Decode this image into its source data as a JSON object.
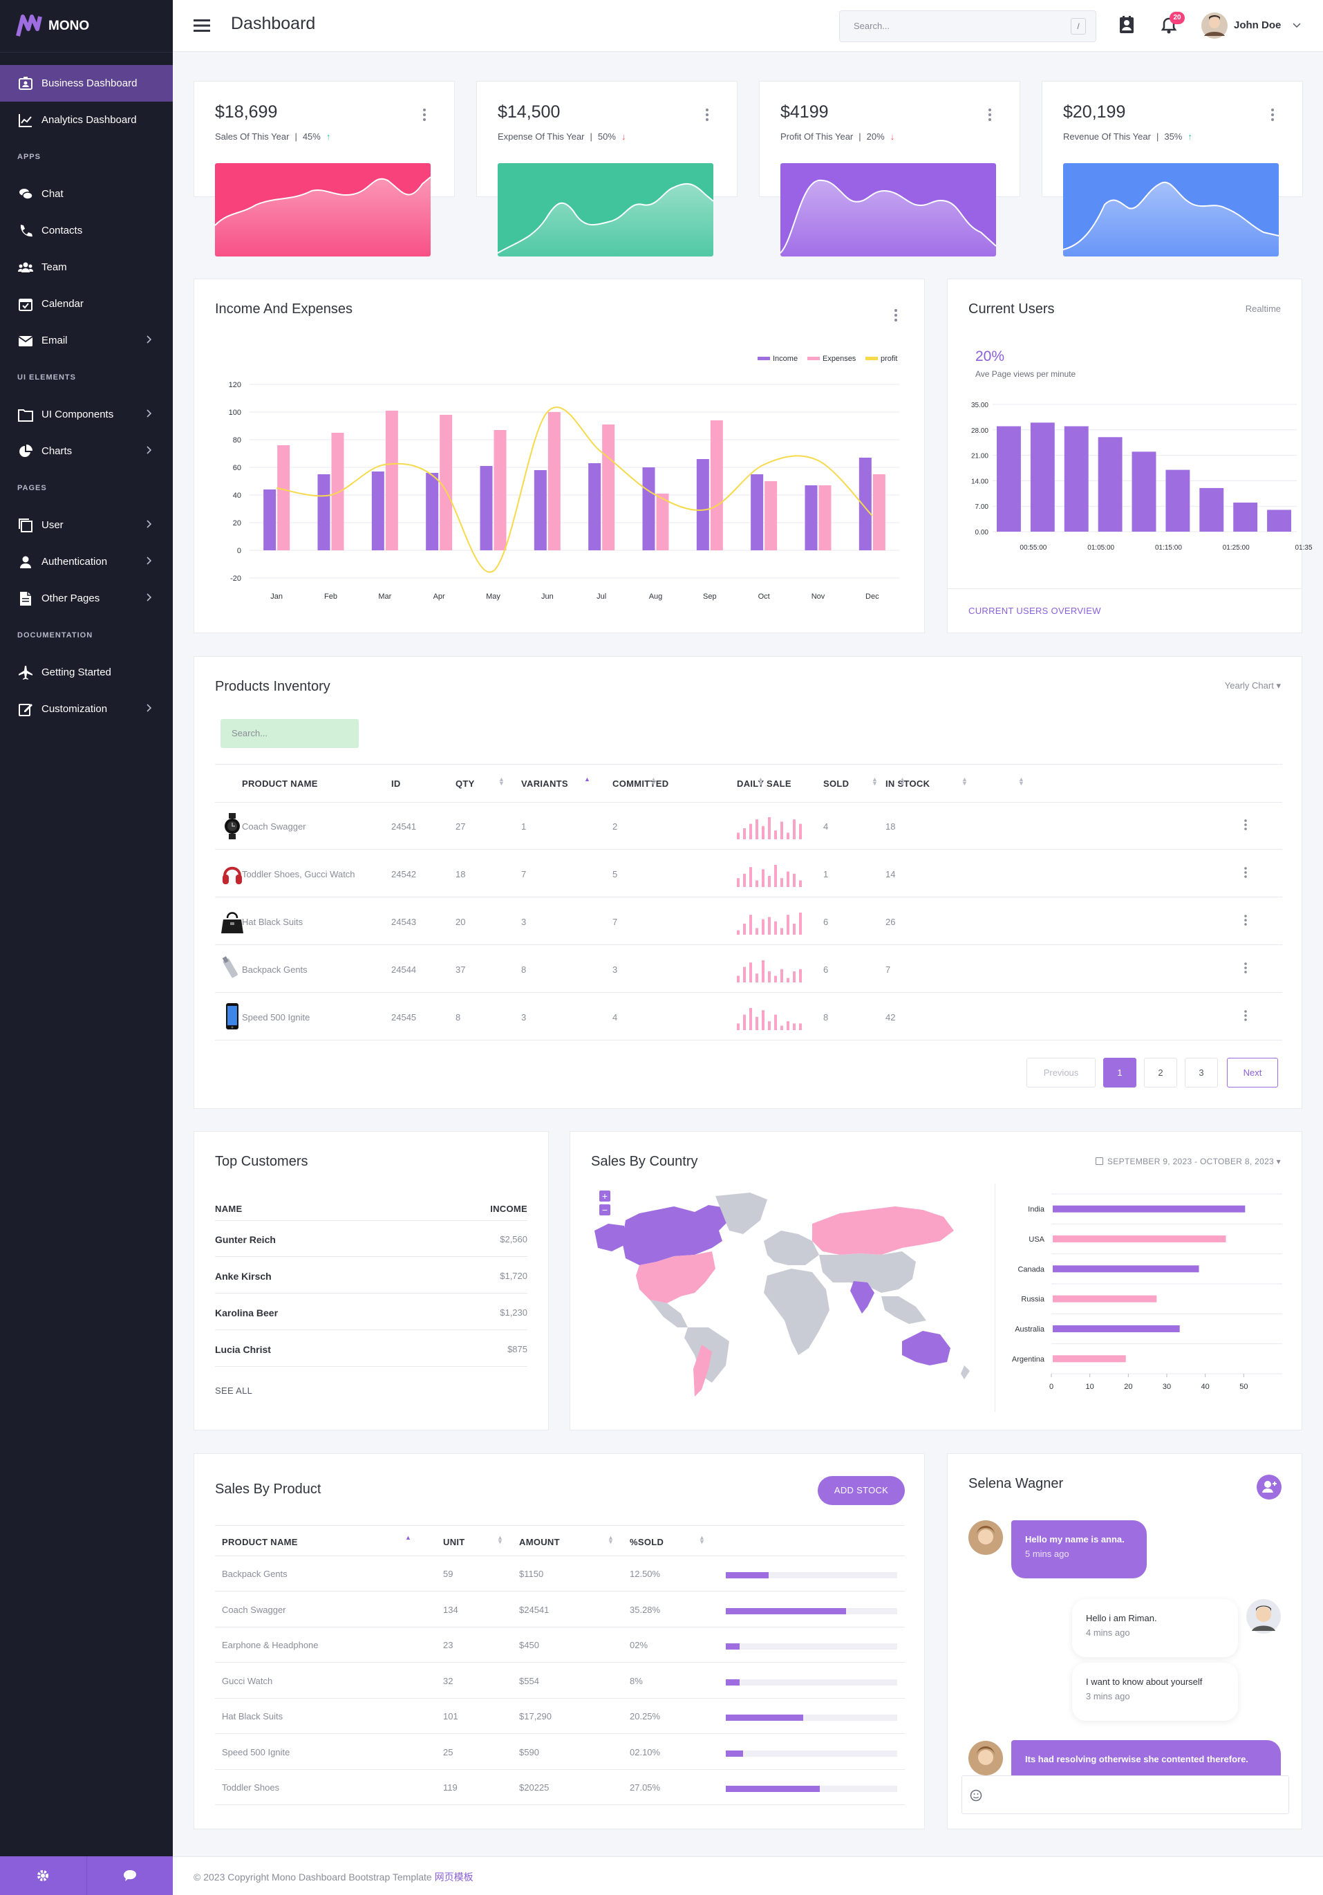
{
  "brand": {
    "name": "MONO"
  },
  "sidebar": {
    "items": [
      {
        "label": "Business Dashboard",
        "icon": "id-card-icon",
        "active": true
      },
      {
        "label": "Analytics Dashboard",
        "icon": "line-chart-icon"
      }
    ],
    "sections": [
      {
        "heading": "APPS",
        "items": [
          {
            "label": "Chat",
            "icon": "chat-icon"
          },
          {
            "label": "Contacts",
            "icon": "phone-icon"
          },
          {
            "label": "Team",
            "icon": "team-icon"
          },
          {
            "label": "Calendar",
            "icon": "calendar-icon"
          },
          {
            "label": "Email",
            "icon": "email-icon",
            "chevron": true
          }
        ]
      },
      {
        "heading": "UI ELEMENTS",
        "items": [
          {
            "label": "UI Components",
            "icon": "folder-icon",
            "chevron": true
          },
          {
            "label": "Charts",
            "icon": "pie-chart-icon",
            "chevron": true
          }
        ]
      },
      {
        "heading": "PAGES",
        "items": [
          {
            "label": "User",
            "icon": "copy-icon",
            "chevron": true
          },
          {
            "label": "Authentication",
            "icon": "person-icon",
            "chevron": true
          },
          {
            "label": "Other Pages",
            "icon": "file-icon",
            "chevron": true
          }
        ]
      },
      {
        "heading": "DOCUMENTATION",
        "items": [
          {
            "label": "Getting Started",
            "icon": "airplane-icon"
          },
          {
            "label": "Customization",
            "icon": "edit-icon",
            "chevron": true
          }
        ]
      }
    ]
  },
  "header": {
    "title": "Dashboard",
    "search_placeholder": "Search...",
    "search_shortcut": "/",
    "notification_count": "20",
    "user_name": "John Doe"
  },
  "stats": [
    {
      "value": "$18,699",
      "label": "Sales Of This Year",
      "pct": "45%",
      "trend": "up",
      "color": "#f7427c"
    },
    {
      "value": "$14,500",
      "label": "Expense Of This Year",
      "pct": "50%",
      "trend": "down",
      "color": "#41c49b"
    },
    {
      "value": "$4199",
      "label": "Profit Of This Year",
      "pct": "20%",
      "trend": "down",
      "color": "#9a63e6"
    },
    {
      "value": "$20,199",
      "label": "Revenue Of This Year",
      "pct": "35%",
      "trend": "up",
      "color": "#5b8df7"
    }
  ],
  "income_expenses": {
    "title": "Income And Expenses",
    "chart_data": {
      "type": "bar",
      "categories": [
        "Jan",
        "Feb",
        "Mar",
        "Apr",
        "May",
        "Jun",
        "Jul",
        "Aug",
        "Sep",
        "Oct",
        "Nov",
        "Dec"
      ],
      "series": [
        {
          "name": "Income",
          "type": "bar",
          "color": "#9e6de0",
          "values": [
            44,
            55,
            57,
            56,
            61,
            58,
            63,
            60,
            66,
            55,
            47,
            67
          ]
        },
        {
          "name": "Expenses",
          "type": "bar",
          "color": "#faa3c7",
          "values": [
            76,
            85,
            101,
            98,
            87,
            100,
            91,
            41,
            94,
            50,
            47,
            55
          ]
        },
        {
          "name": "profit",
          "type": "line",
          "color": "#f7d94c",
          "values": [
            45,
            40,
            62,
            50,
            -15,
            100,
            71,
            40,
            30,
            62,
            65,
            25
          ]
        }
      ],
      "yticks": [
        120,
        100,
        80,
        60,
        40,
        20,
        0,
        -20
      ],
      "ylim": [
        -20,
        120
      ]
    }
  },
  "current_users": {
    "title": "Current Users",
    "tag": "Realtime",
    "pct": "20%",
    "subtitle": "Ave Page views per minute",
    "footer_link": "CURRENT USERS OVERVIEW",
    "chart_data": {
      "type": "bar",
      "yticks": [
        "35.00",
        "28.00",
        "21.00",
        "14.00",
        "7.00",
        "0.00"
      ],
      "ylim": [
        0,
        35
      ],
      "xticks": [
        "00:55:00",
        "01:05:00",
        "01:15:00",
        "01:25:00",
        "01:35"
      ],
      "values": [
        29,
        30,
        29,
        26,
        22,
        17,
        12,
        8,
        6
      ],
      "color": "#9e6de0"
    }
  },
  "inventory": {
    "title": "Products Inventory",
    "dropdown": "Yearly Chart",
    "search_placeholder": "Search...",
    "columns": [
      "PRODUCT NAME",
      "ID",
      "QTY",
      "VARIANTS",
      "COMMITTED",
      "DAILY SALE",
      "SOLD",
      "IN STOCK"
    ],
    "rows": [
      {
        "name": "Coach Swagger",
        "id": "24541",
        "qty": "27",
        "variants": "1",
        "committed": "2",
        "sold": "4",
        "stock": "18",
        "icon": "watch-icon",
        "spark": [
          3,
          5,
          7,
          9,
          6,
          10,
          4,
          8,
          3,
          9,
          7
        ]
      },
      {
        "name": "Toddler Shoes, Gucci Watch",
        "id": "24542",
        "qty": "18",
        "variants": "7",
        "committed": "5",
        "sold": "1",
        "stock": "14",
        "icon": "headphone-icon",
        "spark": [
          4,
          6,
          9,
          3,
          8,
          5,
          10,
          4,
          7,
          6,
          3
        ]
      },
      {
        "name": "Hat Black Suits",
        "id": "24543",
        "qty": "20",
        "variants": "3",
        "committed": "7",
        "sold": "6",
        "stock": "26",
        "icon": "handbag-icon",
        "spark": [
          2,
          5,
          9,
          3,
          7,
          8,
          6,
          3,
          9,
          5,
          10
        ]
      },
      {
        "name": "Backpack Gents",
        "id": "24544",
        "qty": "37",
        "variants": "8",
        "committed": "3",
        "sold": "6",
        "stock": "7",
        "icon": "usb-drive-icon",
        "spark": [
          3,
          7,
          9,
          4,
          10,
          5,
          3,
          6,
          2,
          5,
          6
        ]
      },
      {
        "name": "Speed 500 Ignite",
        "id": "24545",
        "qty": "8",
        "variants": "3",
        "committed": "4",
        "sold": "8",
        "stock": "42",
        "icon": "phone-device-icon",
        "spark": [
          3,
          7,
          10,
          6,
          9,
          4,
          7,
          2,
          4,
          3,
          3
        ]
      }
    ],
    "pagination": {
      "prev": "Previous",
      "pages": [
        "1",
        "2",
        "3"
      ],
      "next": "Next",
      "current": "1"
    }
  },
  "top_customers": {
    "title": "Top Customers",
    "col_name": "NAME",
    "col_income": "INCOME",
    "rows": [
      {
        "name": "Gunter Reich",
        "income": "$2,560"
      },
      {
        "name": "Anke Kirsch",
        "income": "$1,720"
      },
      {
        "name": "Karolina Beer",
        "income": "$1,230"
      },
      {
        "name": "Lucia Christ",
        "income": "$875"
      }
    ],
    "see_all": "SEE ALL"
  },
  "sales_country": {
    "title": "Sales By Country",
    "date_range": "SEPTEMBER 9, 2023 - OCTOBER 8, 2023",
    "zoom_in": "+",
    "zoom_out": "−",
    "chart_data": {
      "type": "bar",
      "orientation": "horizontal",
      "categories": [
        "India",
        "USA",
        "Canada",
        "Russia",
        "Australia",
        "Argentina"
      ],
      "values": [
        50,
        45,
        38,
        27,
        33,
        19
      ],
      "colors": [
        "#9e6de0",
        "#faa3c7",
        "#9e6de0",
        "#faa3c7",
        "#9e6de0",
        "#faa3c7"
      ],
      "xticks": [
        0,
        10,
        20,
        30,
        40,
        50
      ],
      "xlim": [
        0,
        60
      ]
    }
  },
  "sales_product": {
    "title": "Sales By Product",
    "button": "ADD STOCK",
    "columns": [
      "PRODUCT NAME",
      "UNIT",
      "AMOUNT",
      "%SOLD"
    ],
    "rows": [
      {
        "name": "Backpack Gents",
        "unit": "59",
        "amount": "$1150",
        "sold": "12.50%",
        "pct": 25
      },
      {
        "name": "Coach Swagger",
        "unit": "134",
        "amount": "$24541",
        "sold": "35.28%",
        "pct": 70
      },
      {
        "name": "Earphone & Headphone",
        "unit": "23",
        "amount": "$450",
        "sold": "02%",
        "pct": 8
      },
      {
        "name": "Gucci Watch",
        "unit": "32",
        "amount": "$554",
        "sold": "8%",
        "pct": 8
      },
      {
        "name": "Hat Black Suits",
        "unit": "101",
        "amount": "$17,290",
        "sold": "20.25%",
        "pct": 45
      },
      {
        "name": "Speed 500 Ignite",
        "unit": "25",
        "amount": "$590",
        "sold": "02.10%",
        "pct": 10
      },
      {
        "name": "Toddler Shoes",
        "unit": "119",
        "amount": "$20225",
        "sold": "27.05%",
        "pct": 55
      }
    ]
  },
  "chat": {
    "title": "Selena Wagner",
    "messages": [
      {
        "text": "Hello my name is anna.",
        "time": "5 mins ago",
        "side": "left"
      },
      {
        "text": "Hello i am Riman.",
        "time": "4 mins ago",
        "side": "right"
      },
      {
        "text": "I want to know about yourself",
        "time": "3 mins ago",
        "side": "right"
      },
      {
        "text": "Its had resolving otherwise she contented therefore.",
        "time": "",
        "side": "left"
      }
    ]
  },
  "footer": {
    "text": "© 2023 Copyright Mono Dashboard Bootstrap Template",
    "link": "网页模板"
  }
}
